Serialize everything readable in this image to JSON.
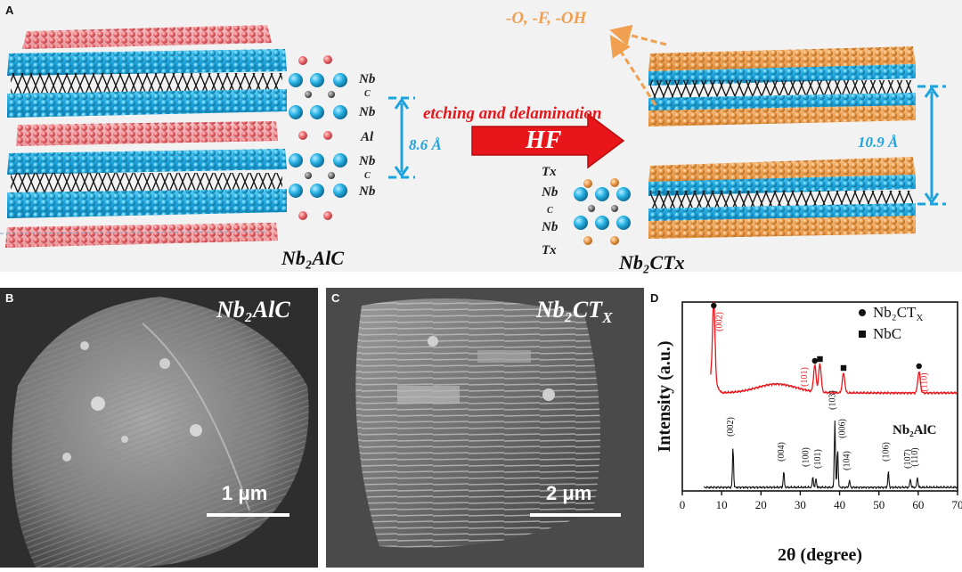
{
  "panel_a": {
    "label": "A",
    "left_title": "Nb₂AlC",
    "right_title": "Nb₂CTx",
    "left_stack": [
      "Nb",
      "C",
      "Nb",
      "Al",
      "Nb",
      "C",
      "Nb"
    ],
    "right_stack": [
      "Tx",
      "Nb",
      "C",
      "Nb",
      "Tx"
    ],
    "left_spacing": "8.6 Å",
    "right_spacing": "10.9 Å",
    "process_label": "etching and delamination",
    "arrow_label": "HF",
    "terminations": "-O, -F, -OH",
    "colors": {
      "nb": "#2ab4e6",
      "al": "#f07075",
      "c": "#333333",
      "tx": "#f0a050",
      "measure": "#1ea3dc",
      "arrow": "#e8161b",
      "process": "#e8161b"
    }
  },
  "panel_b": {
    "label": "B",
    "title": "Nb₂AlC",
    "scale": "1 μm"
  },
  "panel_c": {
    "label": "C",
    "title": "Nb₂CT",
    "title_sub": "X",
    "scale": "2 μm"
  },
  "chart_data": {
    "label": "D",
    "type": "line",
    "xlabel": "2θ (degree)",
    "ylabel": "Intensity (a.u.)",
    "xlim": [
      0,
      70
    ],
    "xticks": [
      0,
      10,
      20,
      30,
      40,
      50,
      60,
      70
    ],
    "legend": [
      {
        "marker": "circle",
        "name": "Nb₂CT",
        "sub": "X"
      },
      {
        "marker": "square",
        "name": "NbC"
      }
    ],
    "series": [
      {
        "name": "Nb₂CT",
        "color": "#e8161b",
        "peaks": [
          {
            "x": 8.0,
            "label": "(002)",
            "marker": "circle"
          },
          {
            "x": 33.7,
            "label": "(101)",
            "marker": "circle"
          },
          {
            "x": 35.0,
            "label": "",
            "marker": "square"
          },
          {
            "x": 41.0,
            "label": "",
            "marker": "square"
          },
          {
            "x": 60.2,
            "label": "(110)",
            "marker": "circle"
          }
        ]
      },
      {
        "name": "Nb₂AlC",
        "color": "#111111",
        "peaks": [
          {
            "x": 12.9,
            "label": "(002)"
          },
          {
            "x": 25.8,
            "label": "(004)"
          },
          {
            "x": 33.2,
            "label": "(100)"
          },
          {
            "x": 34.0,
            "label": "(101)"
          },
          {
            "x": 38.8,
            "label": "(103)"
          },
          {
            "x": 39.5,
            "label": "(006)"
          },
          {
            "x": 42.5,
            "label": "(104)"
          },
          {
            "x": 52.4,
            "label": "(106)"
          },
          {
            "x": 58.0,
            "label": "(107)"
          },
          {
            "x": 59.8,
            "label": "(110)"
          }
        ]
      }
    ]
  }
}
